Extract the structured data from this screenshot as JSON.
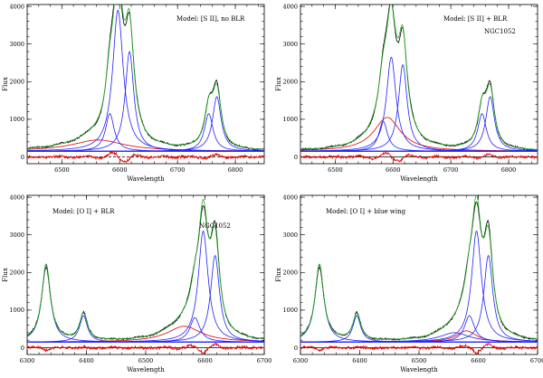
{
  "chart_data": [
    {
      "type": "line",
      "xlabel": "Wavelength",
      "ylabel": "Flux",
      "xlim": [
        6440,
        6850
      ],
      "ylim": [
        -180,
        4050
      ],
      "xticks": [
        6500,
        6600,
        6700,
        6800
      ],
      "yticks": [
        0,
        1000,
        2000,
        3000,
        4000
      ],
      "annotations": [
        "Model: [S II], no BLR"
      ],
      "continuum": 150,
      "components": [
        {
          "center": 6563,
          "amp": 300,
          "width": 55,
          "color": "#e00000"
        },
        {
          "center": 6583,
          "amp": 1000,
          "width": 9,
          "color": "#2020ff"
        },
        {
          "center": 6597,
          "amp": 3750,
          "width": 11,
          "color": "#2020ff"
        },
        {
          "center": 6617,
          "amp": 2650,
          "width": 9,
          "color": "#2020ff"
        },
        {
          "center": 6754,
          "amp": 1000,
          "width": 9,
          "color": "#2020ff"
        },
        {
          "center": 6768,
          "amp": 1450,
          "width": 9,
          "color": "#2020ff"
        }
      ],
      "residual_offset": 0,
      "zero_dashed": true
    },
    {
      "type": "line",
      "xlabel": "Wavelength",
      "ylabel": "Flux",
      "xlim": [
        6440,
        6850
      ],
      "ylim": [
        -180,
        4050
      ],
      "xticks": [
        6500,
        6600,
        6700,
        6800
      ],
      "yticks": [
        0,
        1000,
        2000,
        3000,
        4000
      ],
      "annotations": [
        "Model: [S II] + BLR",
        "NGC1052"
      ],
      "continuum": 150,
      "components": [
        {
          "center": 6590,
          "amp": 900,
          "width": 28,
          "color": "#e00000"
        },
        {
          "center": 6583,
          "amp": 800,
          "width": 9,
          "color": "#2020ff"
        },
        {
          "center": 6597,
          "amp": 2500,
          "width": 10,
          "color": "#2020ff"
        },
        {
          "center": 6617,
          "amp": 2300,
          "width": 9,
          "color": "#2020ff"
        },
        {
          "center": 6754,
          "amp": 1000,
          "width": 9,
          "color": "#2020ff"
        },
        {
          "center": 6768,
          "amp": 1450,
          "width": 9,
          "color": "#2020ff"
        }
      ],
      "residual_offset": 0,
      "zero_dashed": false
    },
    {
      "type": "line",
      "xlabel": "Wavelength",
      "ylabel": "Flux",
      "xlim": [
        6300,
        6700
      ],
      "ylim": [
        -180,
        4050
      ],
      "xticks": [
        6300,
        6400,
        6500,
        6600,
        6700
      ],
      "yticks": [
        0,
        1000,
        2000,
        3000,
        4000
      ],
      "annotations": [
        "Model: [O I] + BLR",
        "NGC1052"
      ],
      "continuum": 150,
      "components": [
        {
          "center": 6332,
          "amp": 2050,
          "width": 9,
          "color": "#2020ff"
        },
        {
          "center": 6395,
          "amp": 700,
          "width": 8,
          "color": "#2020ff"
        },
        {
          "center": 6565,
          "amp": 420,
          "width": 35,
          "color": "#e00000"
        },
        {
          "center": 6583,
          "amp": 650,
          "width": 10,
          "color": "#2020ff"
        },
        {
          "center": 6597,
          "amp": 2950,
          "width": 10,
          "color": "#2020ff"
        },
        {
          "center": 6617,
          "amp": 2300,
          "width": 9,
          "color": "#2020ff"
        }
      ],
      "residual_offset": 0,
      "zero_dashed": false
    },
    {
      "type": "line",
      "xlabel": "Wavelength",
      "ylabel": "Flux",
      "xlim": [
        6300,
        6700
      ],
      "ylim": [
        -180,
        4050
      ],
      "xticks": [
        6300,
        6400,
        6500,
        6600,
        6700
      ],
      "yticks": [
        0,
        1000,
        2000,
        3000,
        4000
      ],
      "annotations": [
        "Model: [O I] + blue wing"
      ],
      "continuum": 150,
      "components": [
        {
          "center": 6332,
          "amp": 2050,
          "width": 9,
          "color": "#2020ff"
        },
        {
          "center": 6395,
          "amp": 700,
          "width": 8,
          "color": "#2020ff"
        },
        {
          "center": 6560,
          "amp": 250,
          "width": 30,
          "color": "#2020ff"
        },
        {
          "center": 6580,
          "amp": 300,
          "width": 20,
          "color": "#e00000"
        },
        {
          "center": 6585,
          "amp": 700,
          "width": 10,
          "color": "#2020ff"
        },
        {
          "center": 6597,
          "amp": 2950,
          "width": 10,
          "color": "#2020ff"
        },
        {
          "center": 6617,
          "amp": 2300,
          "width": 9,
          "color": "#2020ff"
        }
      ],
      "residual_offset": 0,
      "zero_dashed": false
    }
  ],
  "colors": {
    "observed": "#000000",
    "total_model": "#20b020",
    "continuum_model": "#2020ff",
    "residual": "#e00000"
  }
}
